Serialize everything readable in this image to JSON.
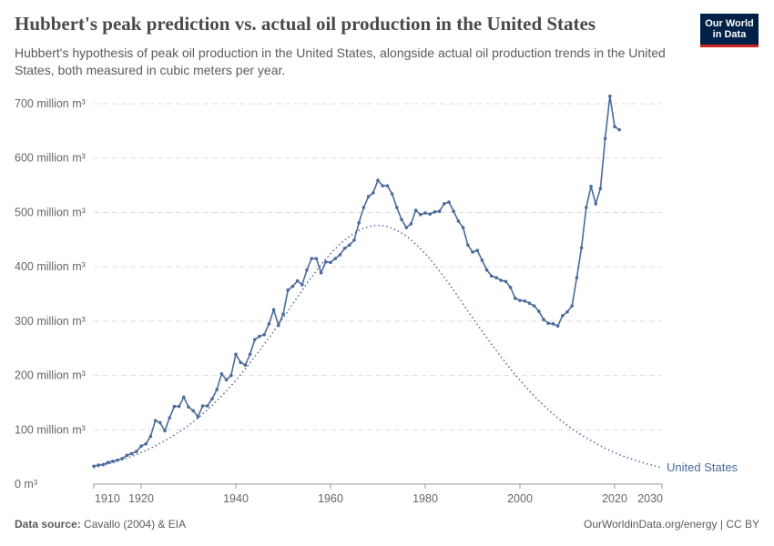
{
  "title": "Hubbert's peak prediction vs. actual oil production in the United States",
  "subtitle": "Hubbert's hypothesis of peak oil production in the United States, alongside actual oil production trends in the United States, both measured in cubic meters per year.",
  "logo": {
    "line1": "Our World",
    "line2": "in Data",
    "bg": "#002147",
    "accent": "#ce261e"
  },
  "footer": {
    "source_label": "Data source:",
    "source": "Cavallo (2004) & EIA",
    "right": "OurWorldinData.org/energy | CC BY"
  },
  "chart_data": {
    "type": "line",
    "xlim": [
      1910,
      2030
    ],
    "ylim": [
      0,
      700
    ],
    "x_ticks": [
      1910,
      1920,
      1940,
      1960,
      1980,
      2000,
      2020,
      2030
    ],
    "y_ticks": [
      0,
      100,
      200,
      300,
      400,
      500,
      600,
      700
    ],
    "y_tick_labels": [
      "0 m³",
      "100 million m³",
      "200 million m³",
      "300 million m³",
      "400 million m³",
      "500 million m³",
      "600 million m³",
      "700 million m³"
    ],
    "grid": "horizontal dashed",
    "color": "#4c6a9c",
    "series": [
      {
        "name": "United States",
        "style": "solid with markers",
        "x": [
          1910,
          1911,
          1912,
          1913,
          1914,
          1915,
          1916,
          1917,
          1918,
          1919,
          1920,
          1921,
          1922,
          1923,
          1924,
          1925,
          1926,
          1927,
          1928,
          1929,
          1930,
          1931,
          1932,
          1933,
          1934,
          1935,
          1936,
          1937,
          1938,
          1939,
          1940,
          1941,
          1942,
          1943,
          1944,
          1945,
          1946,
          1947,
          1948,
          1949,
          1950,
          1951,
          1952,
          1953,
          1954,
          1955,
          1956,
          1957,
          1958,
          1959,
          1960,
          1961,
          1962,
          1963,
          1964,
          1965,
          1966,
          1967,
          1968,
          1969,
          1970,
          1971,
          1972,
          1973,
          1974,
          1975,
          1976,
          1977,
          1978,
          1979,
          1980,
          1981,
          1982,
          1983,
          1984,
          1985,
          1986,
          1987,
          1988,
          1989,
          1990,
          1991,
          1992,
          1993,
          1994,
          1995,
          1996,
          1997,
          1998,
          1999,
          2000,
          2001,
          2002,
          2003,
          2004,
          2005,
          2006,
          2007,
          2008,
          2009,
          2010,
          2011,
          2012,
          2013,
          2014,
          2015,
          2016,
          2017,
          2018,
          2019,
          2020,
          2021
        ],
        "values": [
          33,
          35,
          36,
          40,
          42,
          44,
          47,
          53,
          56,
          60,
          70,
          74,
          88,
          117,
          113,
          98,
          122,
          143,
          143,
          160,
          142,
          135,
          124,
          144,
          144,
          157,
          174,
          203,
          192,
          200,
          239,
          224,
          219,
          239,
          266,
          272,
          275,
          295,
          321,
          292,
          313,
          357,
          364,
          374,
          367,
          394,
          415,
          415,
          389,
          409,
          408,
          415,
          422,
          434,
          440,
          449,
          481,
          509,
          529,
          536,
          559,
          549,
          549,
          534,
          509,
          487,
          472,
          479,
          504,
          496,
          499,
          497,
          501,
          502,
          516,
          519,
          502,
          484,
          472,
          440,
          427,
          430,
          412,
          394,
          383,
          380,
          375,
          373,
          362,
          342,
          338,
          337,
          333,
          328,
          318,
          303,
          296,
          295,
          291,
          310,
          317,
          328,
          380,
          435,
          509,
          548,
          516,
          544,
          636,
          714,
          658,
          652
        ]
      },
      {
        "name": "",
        "style": "dotted",
        "description_label": "Hubbert prediction",
        "x": [
          1910,
          1915,
          1920,
          1925,
          1930,
          1935,
          1940,
          1945,
          1950,
          1955,
          1960,
          1965,
          1970,
          1975,
          1980,
          1985,
          1990,
          1995,
          2000,
          2005,
          2010,
          2015,
          2020,
          2025,
          2030
        ],
        "values": [
          30,
          42,
          58,
          80,
          108,
          145,
          191,
          246,
          306,
          369,
          424,
          462,
          476,
          462,
          424,
          369,
          306,
          246,
          191,
          145,
          108,
          80,
          58,
          42,
          30
        ]
      }
    ],
    "line_label": "United States"
  }
}
